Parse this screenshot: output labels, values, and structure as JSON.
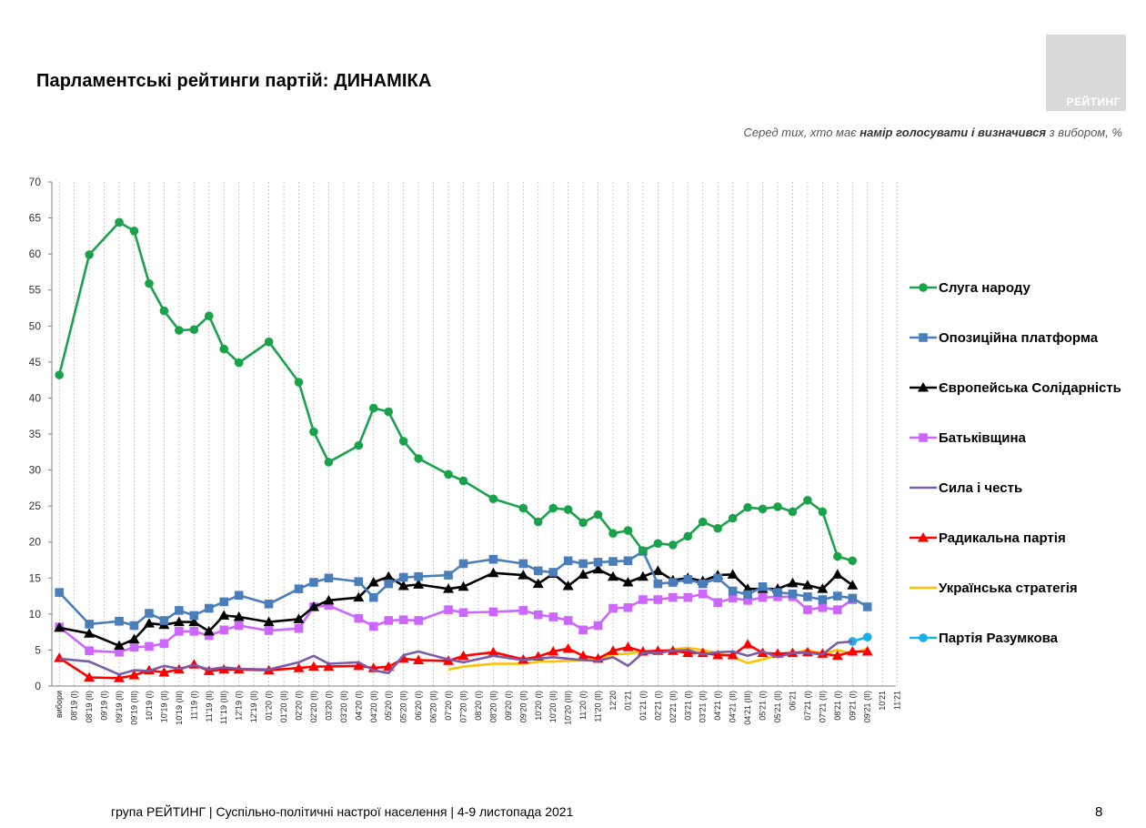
{
  "page": {
    "title": "Парламентські рейтинги партій: ДИНАМІКА",
    "subtitle_pre": "Серед тих, хто має ",
    "subtitle_bold": "намір голосувати і визначився",
    "subtitle_post": " з вибором, %",
    "logo": "РЕЙТИНГ",
    "footer": "група РЕЙТИНГ | Суспільно-політичні настрої населення  | 4-9 листопада 2021",
    "page_number": "8"
  },
  "chart_data": {
    "type": "line",
    "title": "",
    "xlabel": "",
    "ylabel": "",
    "ylim": [
      0,
      70
    ],
    "yticks": [
      0,
      5,
      10,
      15,
      20,
      25,
      30,
      35,
      40,
      45,
      50,
      55,
      60,
      65,
      70
    ],
    "grid": "vertical dashed",
    "legend_position": "right",
    "categories": [
      "вибори",
      "08'19 (І)",
      "08'19 (ІІ)",
      "09'19 (І)",
      "09'19 (ІІ)",
      "09'19 (ІІІ)",
      "10'19 (І)",
      "10'19 (ІІ)",
      "10'19 (ІІІ)",
      "11'19 (І)",
      "11'19 (ІІ)",
      "11'19 (ІІІ)",
      "12'19 (І)",
      "12'19 (ІІ)",
      "01'20 (І)",
      "01'20 (ІІ)",
      "02'20 (І)",
      "02'20 (ІІ)",
      "03'20 (І)",
      "03'20 (ІІ)",
      "04'20 (І)",
      "04'20 (ІІ)",
      "05'20 (І)",
      "05'20 (ІІ)",
      "06'20 (І)",
      "06'20 (ІІ)",
      "07'20 (І)",
      "07'20 (ІІ)",
      "08'20 (І)",
      "08'20 (ІІ)",
      "09'20 (І)",
      "09'20 (ІІ)",
      "10'20 (І)",
      "10'20 (ІІ)",
      "10'20 (ІІІ)",
      "11'20 (І)",
      "11'20 (ІІ)",
      "12'20",
      "01'21",
      "01'21 (І)",
      "02'21 (І)",
      "02'21 (ІІ)",
      "03'21 (І)",
      "03'21 (ІІ)",
      "04'21 (І)",
      "04'21 (ІІ)",
      "04'21 (ІІІ)",
      "05'21 (І)",
      "05'21 (ІІ)",
      "06'21",
      "07'21 (І)",
      "07'21 (ІІ)",
      "08'21 (І)",
      "09'21 (І)",
      "09'21 (ІІ)",
      "10'21",
      "11'21"
    ],
    "series": [
      {
        "name": "Слуга народу",
        "color": "#1aa24a",
        "marker": "circle",
        "values": [
          43.2,
          null,
          59.9,
          null,
          64.4,
          63.2,
          55.9,
          52.1,
          49.4,
          49.5,
          51.4,
          46.8,
          44.9,
          null,
          47.8,
          null,
          42.2,
          35.3,
          31.1,
          null,
          33.4,
          38.6,
          38.1,
          34.0,
          31.6,
          null,
          29.4,
          28.5,
          null,
          26.0,
          null,
          24.7,
          22.8,
          24.7,
          24.5,
          22.7,
          23.8,
          21.2,
          21.6,
          18.8,
          19.8,
          19.6,
          20.8,
          22.8,
          21.9,
          23.3,
          24.8,
          24.6,
          24.9,
          24.2,
          25.8,
          24.2,
          18.0,
          17.4,
          null,
          null,
          null
        ]
      },
      {
        "name": "Опозиційна платформа",
        "color": "#4a7ebb",
        "marker": "square",
        "values": [
          13.0,
          null,
          8.6,
          null,
          9.0,
          8.4,
          10.1,
          9.1,
          10.5,
          9.8,
          10.8,
          11.7,
          12.6,
          null,
          11.4,
          null,
          13.5,
          14.4,
          15.0,
          null,
          14.5,
          12.3,
          14.2,
          15.1,
          15.2,
          null,
          15.4,
          17.0,
          null,
          17.6,
          null,
          17.0,
          16.0,
          15.8,
          17.4,
          17.0,
          17.2,
          17.3,
          17.4,
          18.7,
          14.2,
          14.4,
          14.8,
          14.2,
          15.0,
          13.2,
          12.7,
          13.8,
          13.0,
          12.8,
          12.4,
          12.0,
          12.5,
          12.2,
          11.0,
          null,
          null
        ]
      },
      {
        "name": "Європейська Солідарність",
        "color": "#000000",
        "marker": "triangle",
        "values": [
          8.1,
          null,
          7.3,
          null,
          5.6,
          6.5,
          8.7,
          8.5,
          8.9,
          8.9,
          7.6,
          9.8,
          9.6,
          null,
          8.9,
          null,
          9.3,
          11.0,
          11.9,
          null,
          12.3,
          14.4,
          15.2,
          13.9,
          14.1,
          null,
          13.5,
          13.8,
          null,
          15.7,
          null,
          15.4,
          14.2,
          15.6,
          13.9,
          15.5,
          16.2,
          15.2,
          14.4,
          15.2,
          16.0,
          14.7,
          15.0,
          14.6,
          15.4,
          15.5,
          13.5,
          13.5,
          13.5,
          14.3,
          14.0,
          13.5,
          15.5,
          14.0,
          null,
          null,
          null
        ]
      },
      {
        "name": "Батьківщина",
        "color": "#cc66ff",
        "marker": "square",
        "values": [
          8.2,
          null,
          4.9,
          null,
          4.7,
          5.4,
          5.5,
          5.9,
          7.6,
          7.6,
          7.0,
          7.8,
          8.4,
          null,
          7.7,
          null,
          8.0,
          11.0,
          11.2,
          null,
          9.4,
          8.3,
          9.1,
          9.2,
          9.1,
          null,
          10.6,
          10.2,
          null,
          10.3,
          null,
          10.5,
          9.9,
          9.6,
          9.1,
          7.8,
          8.4,
          10.8,
          10.9,
          12.0,
          12.0,
          12.3,
          12.3,
          12.8,
          11.6,
          12.2,
          11.9,
          12.3,
          12.4,
          12.4,
          10.6,
          10.9,
          10.6,
          12.0,
          null,
          null,
          null
        ]
      },
      {
        "name": "Сила і честь",
        "color": "#7a5ca8",
        "marker": "none",
        "values": [
          3.8,
          null,
          3.4,
          null,
          1.6,
          2.2,
          2.1,
          2.8,
          2.4,
          2.9,
          2.3,
          2.6,
          2.4,
          null,
          2.3,
          null,
          3.3,
          4.2,
          3.1,
          null,
          3.3,
          2.2,
          1.8,
          4.3,
          4.8,
          null,
          3.7,
          3.3,
          null,
          4.2,
          null,
          3.6,
          3.8,
          4.0,
          3.8,
          3.6,
          3.5,
          4.0,
          2.8,
          4.6,
          4.6,
          4.9,
          5.0,
          4.4,
          4.7,
          4.8,
          4.2,
          4.8,
          4.0,
          4.6,
          4.6,
          4.4,
          6.0,
          6.2,
          null,
          null,
          null
        ]
      },
      {
        "name": "Радикальна партія",
        "color": "#ff0000",
        "marker": "triangle",
        "values": [
          3.9,
          null,
          1.2,
          null,
          1.1,
          1.5,
          2.2,
          1.9,
          2.3,
          3.0,
          2.1,
          2.3,
          2.3,
          null,
          2.2,
          null,
          2.5,
          2.7,
          2.7,
          null,
          2.8,
          2.5,
          2.7,
          3.8,
          3.6,
          null,
          3.5,
          4.2,
          null,
          4.7,
          null,
          3.7,
          4.1,
          4.8,
          5.2,
          4.2,
          3.8,
          4.9,
          5.4,
          4.8,
          4.9,
          4.9,
          4.6,
          4.6,
          4.3,
          4.3,
          5.8,
          4.6,
          4.5,
          4.6,
          4.7,
          4.5,
          4.2,
          4.8,
          4.8,
          null,
          null
        ]
      },
      {
        "name": "Українська стратегія",
        "color": "#ffc000",
        "marker": "none",
        "values": [
          null,
          null,
          null,
          null,
          null,
          null,
          null,
          null,
          null,
          null,
          null,
          null,
          null,
          null,
          null,
          null,
          null,
          null,
          null,
          null,
          null,
          null,
          null,
          null,
          null,
          null,
          2.3,
          2.7,
          null,
          3.1,
          null,
          3.1,
          3.4,
          3.4,
          3.5,
          3.6,
          3.7,
          4.4,
          4.5,
          4.8,
          4.8,
          5.1,
          5.3,
          5.0,
          4.6,
          4.0,
          3.2,
          3.7,
          4.3,
          4.6,
          5.0,
          4.5,
          5.0,
          4.5,
          5.2,
          null,
          null
        ]
      },
      {
        "name": "Партія Разумкова",
        "color": "#1ab0e6",
        "marker": "circle",
        "values": [
          null,
          null,
          null,
          null,
          null,
          null,
          null,
          null,
          null,
          null,
          null,
          null,
          null,
          null,
          null,
          null,
          null,
          null,
          null,
          null,
          null,
          null,
          null,
          null,
          null,
          null,
          null,
          null,
          null,
          null,
          null,
          null,
          null,
          null,
          null,
          null,
          null,
          null,
          null,
          null,
          null,
          null,
          null,
          null,
          null,
          null,
          null,
          null,
          null,
          null,
          null,
          null,
          null,
          6.2,
          6.8,
          null,
          null
        ]
      }
    ]
  }
}
